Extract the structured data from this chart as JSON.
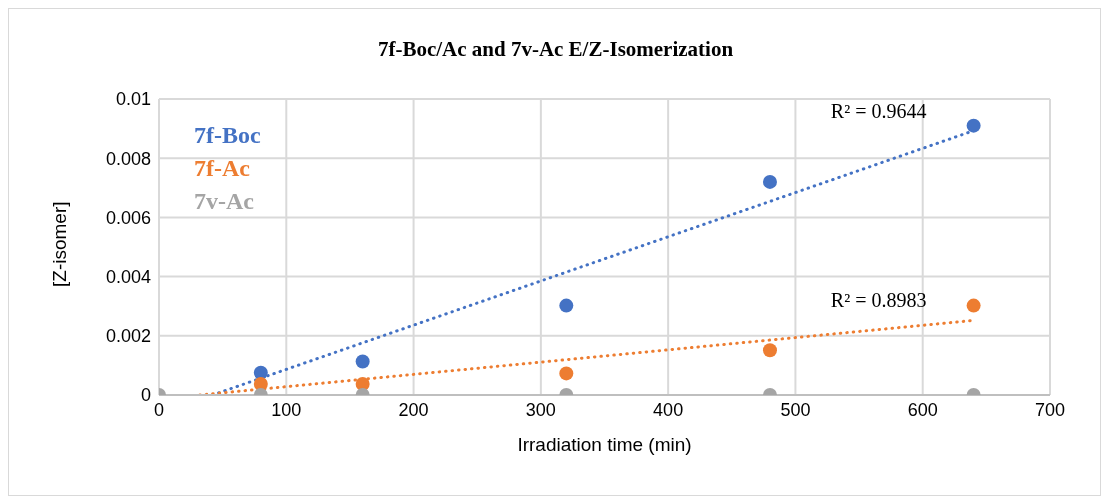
{
  "chart_data": {
    "type": "scatter",
    "title": "7f-Boc/Ac and 7v-Ac E/Z-Isomerization",
    "xlabel": "Irradiation time (min)",
    "ylabel": "[Z-isomer]",
    "x": [
      0,
      80,
      160,
      320,
      480,
      640
    ],
    "series": [
      {
        "name": "7f-Boc",
        "color": "#4472c4",
        "values": [
          null,
          0.00075,
          0.00113,
          0.00302,
          0.0072,
          0.0091
        ]
      },
      {
        "name": "7f-Ac",
        "color": "#ed7d31",
        "values": [
          null,
          0.00037,
          0.00037,
          0.00073,
          0.00151,
          0.00302
        ]
      },
      {
        "name": "7v-Ac",
        "color": "#a5a5a5",
        "values": [
          0,
          0,
          0,
          0,
          0,
          0
        ]
      },
      {
        "type": "line",
        "color": "#4472c4",
        "x": [
          42,
          640
        ],
        "values": [
          0,
          0.00893
        ],
        "line_style": "dotted",
        "marker": "none"
      },
      {
        "type": "line",
        "color": "#ed7d31",
        "x": [
          32,
          640
        ],
        "values": [
          0,
          0.00252
        ],
        "line_style": "dotted",
        "marker": "none"
      }
    ],
    "annotations": [
      "R² = 0.9644",
      "R² = 0.8983"
    ],
    "xlim": [
      0,
      700
    ],
    "xticks": [
      0,
      100,
      200,
      300,
      400,
      500,
      600,
      700
    ],
    "ylim": [
      0,
      0.01
    ],
    "yticks": [
      0,
      0.002,
      0.004,
      0.006,
      0.008,
      0.01
    ],
    "grid": true,
    "legend": "top left",
    "marker": "circle"
  }
}
